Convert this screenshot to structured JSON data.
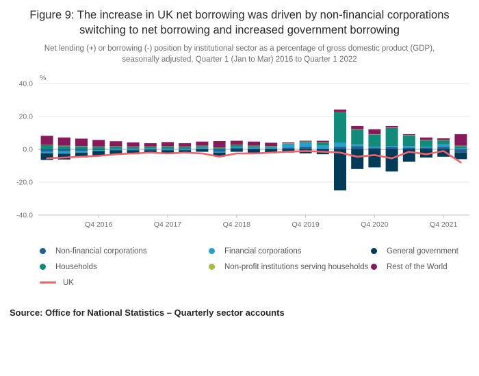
{
  "page": {
    "title": "Figure 9: The increase in UK net borrowing was driven by non-financial corporations switching to net borrowing and increased government borrowing",
    "subtitle": "Net lending (+) or borrowing (-) position by institutional sector as a percentage of gross domestic product (GDP), seasonally adjusted, Quarter 1 (Jan to Mar) 2016 to Quarter 1 2022",
    "source": "Source: Office for National Statistics – Quarterly sector accounts"
  },
  "chart_data": {
    "type": "bar",
    "stacked": true,
    "unit": "%",
    "ylim": [
      -40,
      40
    ],
    "yticks": [
      40,
      20,
      0,
      -20,
      -40
    ],
    "ytick_labels": [
      "40.0",
      "20.0",
      "0.0",
      "-20.0",
      "-40.0"
    ],
    "grid": true,
    "legend_position": "bottom",
    "x": [
      "Q1 2016",
      "Q2 2016",
      "Q3 2016",
      "Q4 2016",
      "Q1 2017",
      "Q2 2017",
      "Q3 2017",
      "Q4 2017",
      "Q1 2018",
      "Q2 2018",
      "Q3 2018",
      "Q4 2018",
      "Q1 2019",
      "Q2 2019",
      "Q3 2019",
      "Q4 2019",
      "Q1 2020",
      "Q2 2020",
      "Q3 2020",
      "Q4 2020",
      "Q1 2021",
      "Q2 2021",
      "Q3 2021",
      "Q4 2021",
      "Q1 2022"
    ],
    "x_tick_labels": [
      "Q4 2016",
      "Q4 2017",
      "Q4 2018",
      "Q4 2019",
      "Q4 2020",
      "Q4 2021"
    ],
    "series": [
      {
        "name": "Non-financial corporations",
        "color": "#206095",
        "values": [
          -1.5,
          -1.2,
          -1.0,
          -0.5,
          0.5,
          0.5,
          -0.5,
          0.5,
          0.5,
          0.5,
          -1.5,
          1.0,
          0.5,
          0.5,
          1.0,
          1.5,
          0.5,
          1.5,
          2.0,
          1.0,
          1.5,
          1.0,
          1.0,
          1.5,
          -2.0
        ]
      },
      {
        "name": "Financial corporations",
        "color": "#27A0CC",
        "values": [
          -1.0,
          -1.5,
          -1.0,
          -0.5,
          -0.5,
          -0.5,
          0.5,
          -0.5,
          -0.5,
          0.5,
          -0.5,
          0.5,
          0.5,
          0.5,
          2.0,
          2.5,
          2.0,
          2.5,
          1.0,
          0.5,
          0.5,
          1.0,
          0.5,
          1.5,
          0.5
        ]
      },
      {
        "name": "General government",
        "color": "#003C57",
        "values": [
          -4.0,
          -3.5,
          -3.0,
          -3.0,
          -2.5,
          -2.5,
          -2.0,
          -2.0,
          -2.0,
          -1.5,
          -2.0,
          -1.5,
          -2.0,
          -2.5,
          -2.0,
          -2.5,
          -3.0,
          -25.0,
          -12.0,
          -11.0,
          -13.5,
          -7.5,
          -5.0,
          -4.5,
          -4.0
        ]
      },
      {
        "name": "Households",
        "color": "#118C7B",
        "values": [
          2.5,
          2.0,
          1.8,
          1.5,
          1.2,
          1.0,
          1.0,
          1.2,
          1.0,
          1.0,
          0.8,
          1.0,
          1.0,
          0.8,
          0.5,
          0.5,
          1.5,
          18.5,
          9.0,
          7.5,
          11.0,
          6.5,
          4.0,
          2.5,
          1.5
        ]
      },
      {
        "name": "Non-profit institutions serving households",
        "color": "#A8BD3A",
        "values": [
          0.2,
          0.2,
          0.2,
          0.2,
          0.2,
          0.2,
          0.2,
          0.2,
          0.2,
          0.2,
          0.2,
          0.2,
          0.2,
          0.2,
          0.2,
          0.2,
          0.2,
          0.2,
          0.2,
          0.2,
          0.2,
          0.2,
          0.2,
          0.2,
          0.2
        ]
      },
      {
        "name": "Rest of the World",
        "color": "#871A5B",
        "values": [
          5.5,
          5.0,
          4.5,
          4.0,
          3.0,
          2.5,
          2.0,
          2.5,
          2.0,
          2.5,
          4.0,
          2.5,
          2.5,
          2.0,
          0.5,
          0.5,
          1.0,
          1.5,
          2.0,
          3.0,
          1.0,
          0.5,
          1.5,
          1.0,
          7.0
        ]
      }
    ],
    "line_series": {
      "name": "UK",
      "color": "#F66068",
      "values": [
        -5.5,
        -5.0,
        -4.5,
        -4.0,
        -3.0,
        -2.5,
        -2.0,
        -2.5,
        -2.0,
        -2.5,
        -4.5,
        -2.5,
        -2.5,
        -2.0,
        -1.5,
        -1.0,
        -1.5,
        -2.0,
        -4.5,
        -3.5,
        -5.5,
        -1.5,
        -3.0,
        -1.0,
        -8.0
      ]
    }
  }
}
